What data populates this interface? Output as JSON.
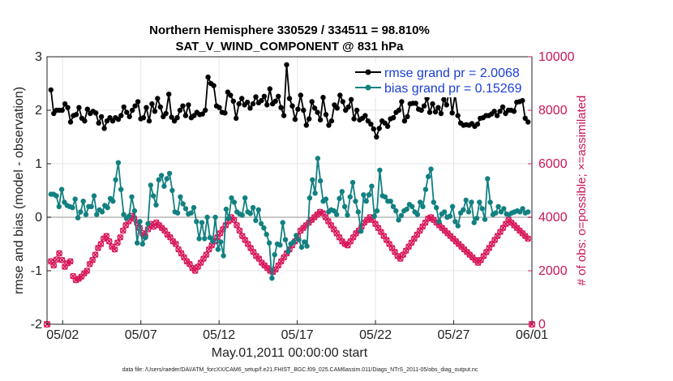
{
  "chart_data": {
    "type": "line",
    "title_line1": "Northern Hemisphere 330529 / 334511 = 98.810%",
    "title_line2": "SAT_V_WIND_COMPONENT @ 831 hPa",
    "xlabel": "May.01,2011 00:00:00 start",
    "ylabel_left": "rmse and bias (model - observation)",
    "ylabel_right": "# of obs: o=possible; ×=assimilated",
    "footer": "data file: /Users/raeder/DAI/ATM_forcXX/CAM6_setup/f.e21.FHIST_BGC.f09_025.CAM6assim.011/Diags_NTrS_2011-05/obs_diag_output.nc",
    "xlim": [
      0,
      31
    ],
    "ylim_left": [
      -2,
      3
    ],
    "ylim_right": [
      0,
      10000
    ],
    "yticks_left": [
      "-2",
      "-1",
      "0",
      "1",
      "2",
      "3"
    ],
    "yticks_left_values": [
      -2,
      -1,
      0,
      1,
      2,
      3
    ],
    "yticks_right": [
      "0",
      "2000",
      "4000",
      "6000",
      "8000",
      "10000"
    ],
    "yticks_right_values": [
      0,
      2000,
      4000,
      6000,
      8000,
      10000
    ],
    "xticks": [
      "05/02",
      "05/07",
      "05/12",
      "05/17",
      "05/22",
      "05/27",
      "06/01"
    ],
    "xticks_values": [
      1,
      6,
      11,
      16,
      21,
      26,
      31
    ],
    "legend_position": "top-right",
    "colors": {
      "rmse": "#000000",
      "bias": "#128080",
      "obs": "#d8165a",
      "zero": "#c8c8c8",
      "grid": "#e6e6e6"
    },
    "series": [
      {
        "name": "rmse grand pr = 2.0068",
        "color": "#000000",
        "values": [
          2.38,
          1.94,
          2.0,
          2.0,
          2.0,
          2.12,
          2.05,
          1.78,
          1.9,
          1.92,
          2.05,
          1.85,
          1.8,
          2.02,
          1.94,
          1.98,
          1.95,
          1.76,
          1.88,
          1.66,
          1.8,
          1.86,
          1.8,
          1.86,
          1.83,
          1.9,
          2.06,
          1.96,
          1.88,
          2.0,
          2.08,
          2.16,
          1.84,
          1.86,
          2.05,
          1.8,
          2.12,
          1.98,
          2.22,
          2.06,
          1.88,
          1.94,
          2.3,
          1.87,
          1.8,
          1.86,
          2.0,
          2.08,
          1.9,
          2.1,
          1.86,
          1.9,
          1.96,
          1.92,
          1.93,
          2.0,
          2.62,
          2.5,
          2.46,
          2.08,
          2.05,
          1.96,
          1.95,
          2.34,
          2.28,
          2.17,
          1.85,
          2.12,
          2.22,
          2.1,
          2.15,
          2.04,
          2.12,
          2.25,
          2.14,
          2.18,
          2.26,
          2.1,
          2.4,
          2.12,
          2.17,
          2.26,
          2.05,
          1.9,
          2.85,
          2.22,
          2.08,
          1.83,
          2.02,
          2.28,
          2.0,
          1.72,
          1.84,
          2.16,
          2.04,
          1.96,
          1.82,
          2.24,
          1.92,
          1.72,
          1.8,
          2.1,
          2.04,
          2.28,
          2.16,
          2.0,
          2.06,
          2.2,
          1.84,
          2.0,
          1.82,
          1.85,
          1.9,
          1.8,
          1.74,
          1.65,
          1.5,
          1.66,
          1.8,
          1.76,
          1.7,
          1.84,
          1.86,
          1.96,
          2.0,
          2.16,
          1.8,
          1.88,
          2.12,
          2.13,
          2.13,
          2.02,
          2.0,
          2.08,
          2.22,
          1.96,
          2.12,
          1.97,
          2.05,
          1.94,
          2.2,
          2.1,
          2.4,
          1.95,
          2.3,
          1.9,
          1.76,
          1.72,
          1.73,
          1.72,
          1.75,
          1.7,
          1.74,
          1.85,
          1.86,
          1.9,
          1.9,
          1.93,
          1.98,
          1.9,
          1.98,
          2.06,
          1.94,
          2.0,
          2.0,
          1.98,
          2.15,
          2.16,
          2.18,
          1.85,
          1.78
        ]
      },
      {
        "name": "bias grand pr = 0.15269",
        "color": "#128080",
        "values": [
          0.43,
          0.43,
          0.4,
          0.2,
          0.52,
          0.28,
          0.22,
          0.2,
          0.18,
          0.34,
          -0.01,
          0.1,
          0.3,
          0.05,
          0.2,
          0.2,
          0.4,
          0.05,
          0.14,
          0.1,
          0.22,
          0.18,
          0.35,
          0.3,
          0.7,
          1.02,
          0.52,
          0.05,
          -0.02,
          0.02,
          0.38,
          0.12,
          -0.48,
          -0.08,
          -0.5,
          -0.38,
          -0.12,
          0.6,
          0.4,
          0.23,
          0.7,
          0.78,
          0.58,
          0.72,
          0.82,
          0.5,
          0.1,
          0.08,
          0.38,
          0.25,
          0.16,
          0.06,
          0.08,
          0.18,
          -0.08,
          -0.4,
          -0.1,
          -0.4,
          0.0,
          -0.38,
          -0.45,
          0.0,
          -0.6,
          -0.46,
          -0.72,
          0.15,
          -0.02,
          0.36,
          0.28,
          0.1,
          0.06,
          0.04,
          0.36,
          0.1,
          0.07,
          0.18,
          -0.06,
          0.14,
          -0.12,
          -0.2,
          -0.32,
          -0.48,
          -1.14,
          -0.7,
          -0.5,
          -0.52,
          -0.1,
          -0.42,
          -0.64,
          -0.5,
          -0.46,
          -0.34,
          -0.42,
          -0.56,
          -0.46,
          -0.54,
          0.36,
          0.7,
          0.45,
          1.1,
          0.68,
          0.3,
          0.34,
          0.1,
          0.14,
          0.12,
          0.05,
          0.35,
          0.48,
          0.2,
          0.04,
          0.38,
          0.65,
          0.3,
          0.1,
          -0.26,
          0.42,
          0.3,
          0.42,
          0.58,
          0.02,
          0.12,
          0.88,
          0.4,
          0.38,
          0.3,
          0.3,
          0.2,
          0.12,
          -0.05,
          0.03,
          0.12,
          0.15,
          0.24,
          0.2,
          0.1,
          0.05,
          0.28,
          0.2,
          0.52,
          0.76,
          0.9,
          0.28,
          0.18,
          -0.08,
          0.06,
          0.1,
          0.0,
          0.02,
          0.2,
          -0.08,
          -0.16,
          0.08,
          0.14,
          0.32,
          0.1,
          0.28,
          -0.1,
          -0.02,
          0.28,
          0.16,
          -0.04,
          0.72,
          0.28,
          0.05,
          0.08,
          0.2,
          0.1,
          0.16,
          0.06,
          0.05,
          0.08,
          0.1,
          0.12,
          0.1,
          0.16,
          0.08,
          0.1
        ]
      }
    ],
    "obs_counts": [
      2350,
      2200,
      2420,
      2650,
      2400,
      2150,
      2280,
      2350,
      1800,
      1650,
      1700,
      1780,
      1900,
      2000,
      2250,
      2400,
      2600,
      2850,
      3000,
      3200,
      3300,
      3100,
      2900,
      2800,
      3050,
      3250,
      3500,
      3700,
      3850,
      4050,
      3950,
      3800,
      3600,
      3400,
      3300,
      3550,
      3750,
      3650,
      3800,
      3700,
      3600,
      3500,
      3350,
      3250,
      3100,
      3000,
      2800,
      2650,
      2500,
      2350,
      2250,
      2100,
      2000,
      2150,
      2300,
      2450,
      2600,
      2800,
      2950,
      3100,
      3250,
      3400,
      3550,
      3700,
      3850,
      4000,
      3900,
      3700,
      3500,
      3300,
      3150,
      3000,
      2850,
      2700,
      2550,
      2450,
      2300,
      2200,
      2100,
      2000,
      1950,
      2050,
      2200,
      2350,
      2500,
      2650,
      2800,
      2950,
      3100,
      3300,
      3500,
      3600,
      3700,
      3800,
      3900,
      4000,
      4100,
      4200,
      4150,
      4000,
      3850,
      3700,
      3550,
      3400,
      3250,
      3100,
      3000,
      2950,
      3100,
      3250,
      3400,
      3500,
      3650,
      3800,
      3900,
      4000,
      3900,
      3750,
      3600,
      3450,
      3300,
      3150,
      3000,
      2850,
      2700,
      2550,
      2450,
      2600,
      2750,
      2900,
      3050,
      3200,
      3350,
      3500,
      3650,
      3800,
      3950,
      4000,
      3900,
      3800,
      3700,
      3600,
      3500,
      3400,
      3300,
      3200,
      3100,
      3000,
      2900,
      2800,
      2700,
      2600,
      2500,
      2400,
      2300,
      2400,
      2550,
      2700,
      2850,
      3000,
      3150,
      3300,
      3450,
      3600,
      3750,
      3900,
      3800,
      3700,
      3600,
      3500,
      3400,
      3300,
      3200
    ]
  }
}
